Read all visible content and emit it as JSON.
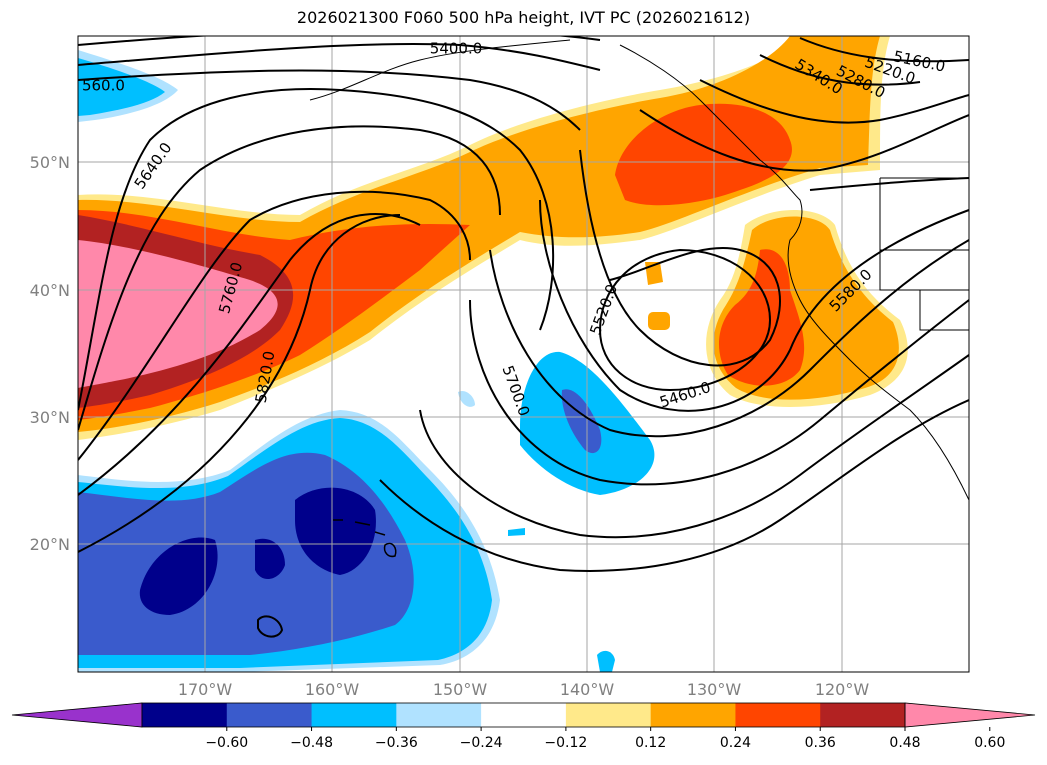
{
  "title": "2026021300 F060 500 hPa height, IVT PC (2026021612)",
  "chart_data": {
    "type": "heatmap",
    "title": "2026021300 F060 500 hPa height, IVT PC (2026021612)",
    "map": {
      "lon_range": [
        -180,
        -110
      ],
      "lat_range": [
        10,
        60
      ],
      "lat_ticks": [
        "20°N",
        "30°N",
        "40°N",
        "50°N"
      ],
      "lon_ticks": [
        "170°W",
        "160°W",
        "150°W",
        "140°W",
        "130°W",
        "120°W"
      ],
      "grid": true
    },
    "colorbar": {
      "levels": [
        -0.6,
        -0.48,
        -0.36,
        -0.24,
        -0.12,
        0.12,
        0.24,
        0.36,
        0.48,
        0.6
      ],
      "tick_labels": [
        "−0.60",
        "−0.48",
        "−0.36",
        "−0.24",
        "−0.12",
        "0.12",
        "0.24",
        "0.36",
        "0.48",
        "0.60"
      ],
      "colors": [
        "#9932cc",
        "#00008b",
        "#3a5bcc",
        "#00bfff",
        "#b0e2ff",
        "#ffffff",
        "#ffe98a",
        "#ffa500",
        "#ff4500",
        "#b22222",
        "#ff88aa"
      ],
      "extend": "both"
    },
    "contour_labels": [
      {
        "text": "5400.0",
        "lon": -150.3,
        "lat": 59.0,
        "angle": 0
      },
      {
        "text": "5160.0",
        "lon": -113.9,
        "lat": 58.0,
        "angle": 12
      },
      {
        "text": "5220.0",
        "lon": -116.2,
        "lat": 57.3,
        "angle": 20
      },
      {
        "text": "5280.0",
        "lon": -118.5,
        "lat": 56.4,
        "angle": 28
      },
      {
        "text": "5340.0",
        "lon": -121.8,
        "lat": 56.8,
        "angle": 32
      },
      {
        "text": "5640.0",
        "lon": -174.1,
        "lat": 49.8,
        "angle": -55
      },
      {
        "text": "5760.0",
        "lon": -168.0,
        "lat": 40.2,
        "angle": -75
      },
      {
        "text": "5820.0",
        "lon": -165.3,
        "lat": 33.2,
        "angle": -80
      },
      {
        "text": "5520.0",
        "lon": -138.7,
        "lat": 38.5,
        "angle": -70
      },
      {
        "text": "5700.0",
        "lon": -145.6,
        "lat": 32.1,
        "angle": 70
      },
      {
        "text": "5460.0",
        "lon": -132.3,
        "lat": 31.8,
        "angle": -18
      },
      {
        "text": "5580.0",
        "lon": -119.3,
        "lat": 40.0,
        "angle": -45
      },
      {
        "text": "560.0",
        "lon": -178.0,
        "lat": 56.1,
        "angle": 0
      }
    ]
  }
}
